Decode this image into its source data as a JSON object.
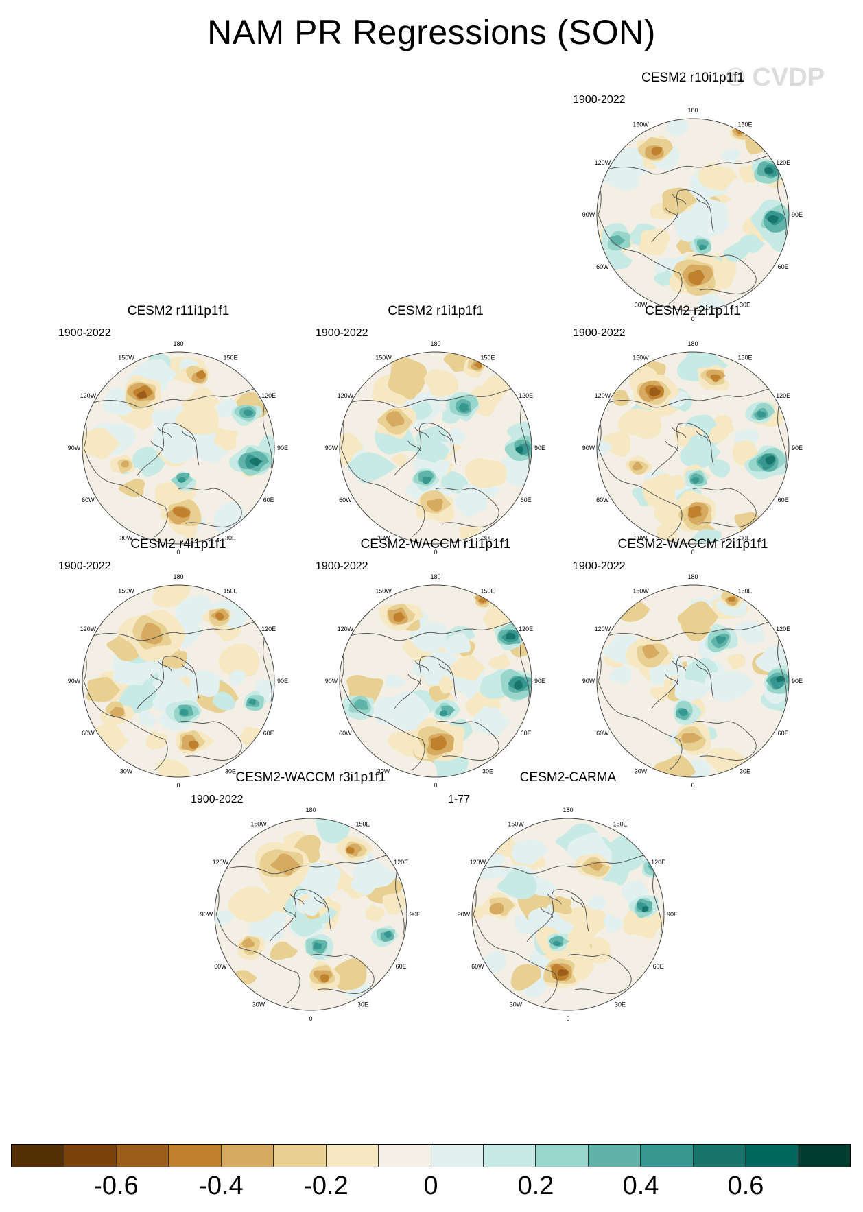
{
  "figure": {
    "title": "NAM PR Regressions (SON)",
    "watermark": "© CVDP"
  },
  "panels": [
    {
      "title": "CESM2 r10i1p1f1",
      "period": "1900-2022",
      "seed": 3,
      "pattern": "a"
    },
    {
      "title": "CESM2 r11i1p1f1",
      "period": "1900-2022",
      "seed": 11,
      "pattern": "b"
    },
    {
      "title": "CESM2 r1i1p1f1",
      "period": "1900-2022",
      "seed": 17,
      "pattern": "c"
    },
    {
      "title": "CESM2 r2i1p1f1",
      "period": "1900-2022",
      "seed": 23,
      "pattern": "b"
    },
    {
      "title": "CESM2 r4i1p1f1",
      "period": "1900-2022",
      "seed": 29,
      "pattern": "d"
    },
    {
      "title": "CESM2-WACCM r1i1p1f1",
      "period": "1900-2022",
      "seed": 31,
      "pattern": "a"
    },
    {
      "title": "CESM2-WACCM r2i1p1f1",
      "period": "1900-2022",
      "seed": 37,
      "pattern": "c"
    },
    {
      "title": "CESM2-WACCM r3i1p1f1",
      "period": "1900-2022",
      "seed": 41,
      "pattern": "d"
    },
    {
      "title": "CESM2-CARMA",
      "period": "1-77",
      "seed": 43,
      "pattern": "e"
    }
  ],
  "lon_labels": [
    "180",
    "150E",
    "120E",
    "90E",
    "60E",
    "30E",
    "0",
    "30W",
    "60W",
    "90W",
    "120W",
    "150W"
  ],
  "colorbar": {
    "colors": [
      "#543005",
      "#7a420a",
      "#9c5d1a",
      "#bf812d",
      "#d6ab61",
      "#e8cf92",
      "#f6e8c3",
      "#f5f0e5",
      "#e2f0ef",
      "#c7eae5",
      "#98d5ca",
      "#5fb3a8",
      "#35978f",
      "#17756b",
      "#01665e",
      "#003c30"
    ],
    "labels": [
      "-0.6",
      "-0.4",
      "-0.2",
      "0",
      "0.2",
      "0.4",
      "0.6"
    ]
  }
}
